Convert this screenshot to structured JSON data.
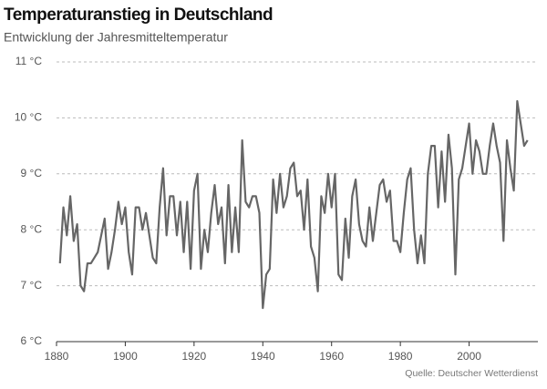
{
  "chart_data": {
    "type": "line",
    "title": "Temperaturanstieg in Deutschland",
    "subtitle": "Entwicklung der Jahresmitteltemperatur",
    "source": "Quelle: Deutscher Wetterdienst",
    "color": "#666666",
    "grid": true,
    "xlim": [
      1880,
      2020
    ],
    "xticks": [
      1880,
      1900,
      1920,
      1940,
      1960,
      1980,
      2000
    ],
    "ylim": [
      6,
      11
    ],
    "yticks": [
      {
        "value": 6,
        "label": "6 °C"
      },
      {
        "value": 7,
        "label": "7 °C"
      },
      {
        "value": 8,
        "label": "8 °C"
      },
      {
        "value": 9,
        "label": "9 °C"
      },
      {
        "value": 10,
        "label": "10 °C"
      },
      {
        "value": 11,
        "label": "11 °C"
      }
    ],
    "x": [
      1881,
      1882,
      1883,
      1884,
      1885,
      1886,
      1887,
      1888,
      1889,
      1890,
      1891,
      1892,
      1893,
      1894,
      1895,
      1896,
      1897,
      1898,
      1899,
      1900,
      1901,
      1902,
      1903,
      1904,
      1905,
      1906,
      1907,
      1908,
      1909,
      1910,
      1911,
      1912,
      1913,
      1914,
      1915,
      1916,
      1917,
      1918,
      1919,
      1920,
      1921,
      1922,
      1923,
      1924,
      1925,
      1926,
      1927,
      1928,
      1929,
      1930,
      1931,
      1932,
      1933,
      1934,
      1935,
      1936,
      1937,
      1938,
      1939,
      1940,
      1941,
      1942,
      1943,
      1944,
      1945,
      1946,
      1947,
      1948,
      1949,
      1950,
      1951,
      1952,
      1953,
      1954,
      1955,
      1956,
      1957,
      1958,
      1959,
      1960,
      1961,
      1962,
      1963,
      1964,
      1965,
      1966,
      1967,
      1968,
      1969,
      1970,
      1971,
      1972,
      1973,
      1974,
      1975,
      1976,
      1977,
      1978,
      1979,
      1980,
      1981,
      1982,
      1983,
      1984,
      1985,
      1986,
      1987,
      1988,
      1989,
      1990,
      1991,
      1992,
      1993,
      1994,
      1995,
      1996,
      1997,
      1998,
      1999,
      2000,
      2001,
      2002,
      2003,
      2004,
      2005,
      2006,
      2007,
      2008,
      2009,
      2010,
      2011,
      2012,
      2013,
      2014,
      2015,
      2016,
      2017
    ],
    "values": [
      7.4,
      8.4,
      7.9,
      8.6,
      7.8,
      8.1,
      7.0,
      6.9,
      7.4,
      7.4,
      7.5,
      7.6,
      7.9,
      8.2,
      7.3,
      7.6,
      8.0,
      8.5,
      8.1,
      8.4,
      7.6,
      7.2,
      8.4,
      8.4,
      8.0,
      8.3,
      7.9,
      7.5,
      7.4,
      8.4,
      9.1,
      7.9,
      8.6,
      8.6,
      7.9,
      8.5,
      7.6,
      8.5,
      7.3,
      8.7,
      9.0,
      7.3,
      8.0,
      7.6,
      8.3,
      8.8,
      8.1,
      8.4,
      7.4,
      8.8,
      7.6,
      8.4,
      7.6,
      9.6,
      8.5,
      8.4,
      8.6,
      8.6,
      8.3,
      6.6,
      7.2,
      7.3,
      8.9,
      8.3,
      9.0,
      8.4,
      8.6,
      9.1,
      9.2,
      8.6,
      8.7,
      8.0,
      8.9,
      7.7,
      7.5,
      6.9,
      8.6,
      8.3,
      9.0,
      8.4,
      9.0,
      7.2,
      7.1,
      8.2,
      7.5,
      8.6,
      8.9,
      8.1,
      7.8,
      7.7,
      8.4,
      7.8,
      8.3,
      8.8,
      8.9,
      8.5,
      8.7,
      7.8,
      7.8,
      7.6,
      8.3,
      8.9,
      9.1,
      8.0,
      7.4,
      7.9,
      7.4,
      9.0,
      9.5,
      9.5,
      8.4,
      9.4,
      8.5,
      9.7,
      9.1,
      7.2,
      8.9,
      9.1,
      9.5,
      9.9,
      9.0,
      9.6,
      9.4,
      9.0,
      9.0,
      9.5,
      9.9,
      9.5,
      9.2,
      7.8,
      9.6,
      9.1,
      8.7,
      10.3,
      9.9,
      9.5,
      9.6
    ]
  }
}
